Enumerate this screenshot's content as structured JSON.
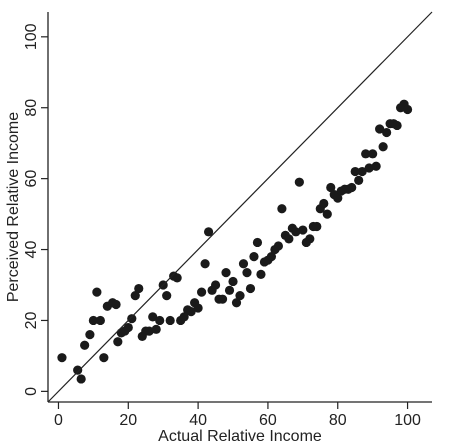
{
  "chart_data": {
    "type": "scatter",
    "title": "",
    "xlabel": "Actual Relative Income",
    "ylabel": "Perceived Relative Income",
    "xlim": [
      -3,
      107
    ],
    "ylim": [
      -3,
      107
    ],
    "xticks": [
      0,
      20,
      40,
      60,
      80,
      100
    ],
    "yticks": [
      0,
      20,
      40,
      60,
      80,
      100
    ],
    "grid": false,
    "reference_line": "y = x",
    "colors": {
      "points": "#1a1a1a",
      "axes": "#222222",
      "reference_line": "#222222"
    },
    "series": [
      {
        "points": [
          [
            1,
            9.5
          ],
          [
            5.5,
            6
          ],
          [
            6.5,
            3.5
          ],
          [
            7.5,
            13
          ],
          [
            9,
            16
          ],
          [
            10,
            20
          ],
          [
            11,
            28
          ],
          [
            12,
            20
          ],
          [
            13,
            9.5
          ],
          [
            14,
            24
          ],
          [
            15.5,
            25
          ],
          [
            16.5,
            24.5
          ],
          [
            17,
            14
          ],
          [
            18,
            16.5
          ],
          [
            19,
            17
          ],
          [
            20,
            18
          ],
          [
            21,
            20.5
          ],
          [
            22,
            27
          ],
          [
            23,
            29
          ],
          [
            24,
            15.5
          ],
          [
            25,
            17
          ],
          [
            26,
            17
          ],
          [
            27,
            21
          ],
          [
            28,
            17.5
          ],
          [
            29,
            20
          ],
          [
            30,
            30
          ],
          [
            31,
            27
          ],
          [
            32,
            20
          ],
          [
            33,
            32.5
          ],
          [
            34,
            32
          ],
          [
            35,
            20
          ],
          [
            36,
            21
          ],
          [
            37,
            23
          ],
          [
            38,
            22.5
          ],
          [
            39,
            25
          ],
          [
            40,
            23.5
          ],
          [
            41,
            28
          ],
          [
            42,
            36
          ],
          [
            43,
            45
          ],
          [
            44,
            28.5
          ],
          [
            45,
            30
          ],
          [
            46,
            26
          ],
          [
            47,
            26
          ],
          [
            48,
            33.5
          ],
          [
            49,
            28.5
          ],
          [
            50,
            31
          ],
          [
            51,
            25
          ],
          [
            52,
            27
          ],
          [
            53,
            36
          ],
          [
            54,
            33.5
          ],
          [
            55,
            29
          ],
          [
            56,
            38
          ],
          [
            57,
            42
          ],
          [
            58,
            33
          ],
          [
            59,
            36.5
          ],
          [
            60,
            37
          ],
          [
            61,
            38
          ],
          [
            62,
            40
          ],
          [
            63,
            41
          ],
          [
            64,
            51.5
          ],
          [
            65,
            44
          ],
          [
            66,
            43
          ],
          [
            67,
            46
          ],
          [
            68,
            45
          ],
          [
            69,
            59
          ],
          [
            70,
            45.5
          ],
          [
            71,
            42
          ],
          [
            72,
            43
          ],
          [
            73,
            46.5
          ],
          [
            74,
            46.5
          ],
          [
            75,
            51.5
          ],
          [
            76,
            53
          ],
          [
            77,
            50
          ],
          [
            78,
            57.5
          ],
          [
            79,
            55.5
          ],
          [
            80,
            54.5
          ],
          [
            81,
            56.5
          ],
          [
            82,
            57
          ],
          [
            83,
            57
          ],
          [
            84,
            57.5
          ],
          [
            85,
            62
          ],
          [
            86,
            59.5
          ],
          [
            87,
            62
          ],
          [
            88,
            67
          ],
          [
            89,
            63
          ],
          [
            90,
            67
          ],
          [
            91,
            63.5
          ],
          [
            92,
            74
          ],
          [
            93,
            69
          ],
          [
            94,
            73
          ],
          [
            95,
            75.5
          ],
          [
            96,
            75.5
          ],
          [
            97,
            75
          ],
          [
            98,
            80
          ],
          [
            99,
            81
          ],
          [
            100,
            79.5
          ]
        ]
      }
    ]
  }
}
